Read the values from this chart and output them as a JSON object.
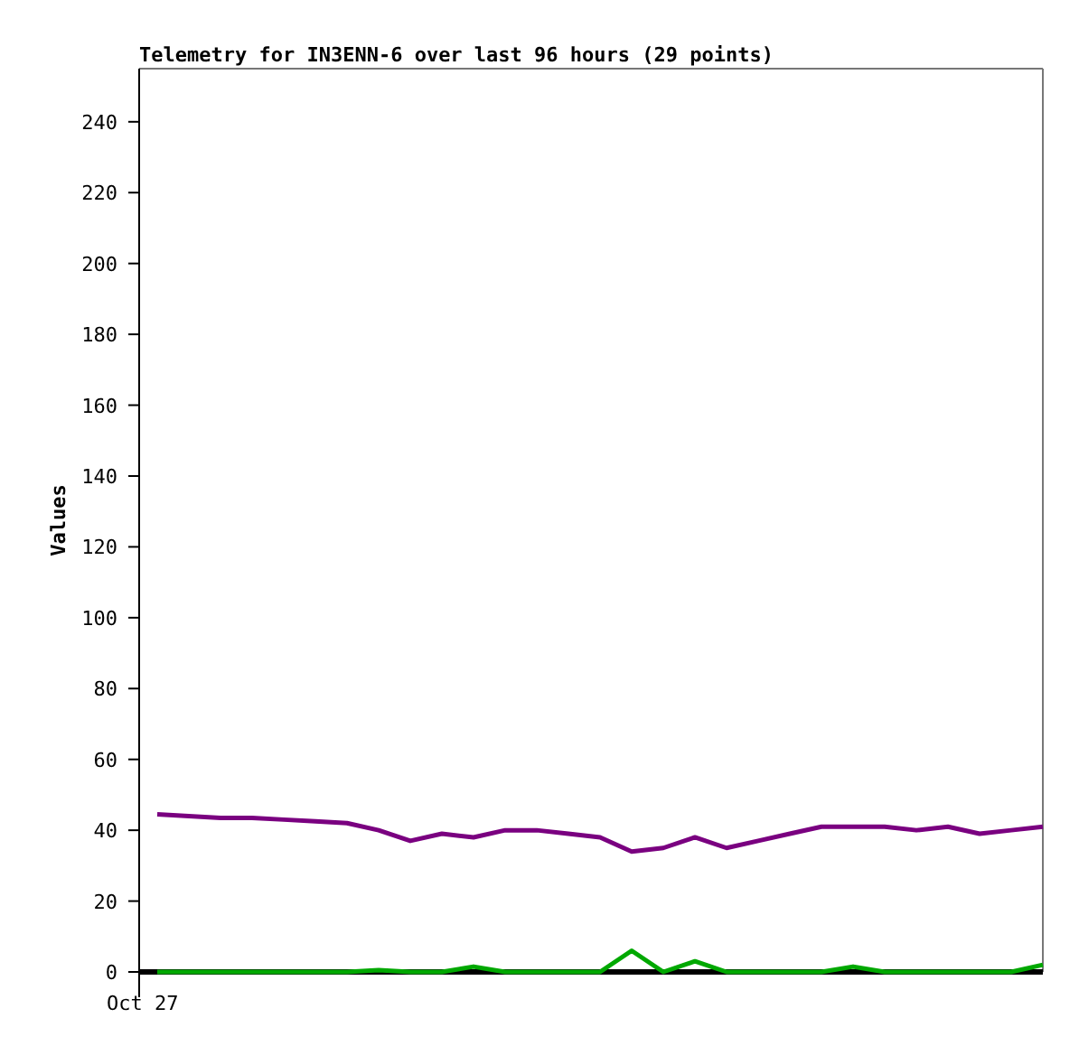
{
  "chart_data": {
    "type": "line",
    "title": "Telemetry for IN3ENN-6 over last 96 hours (29 points)",
    "ylabel": "Values",
    "categories": [
      "Oct 27",
      null,
      null,
      null,
      null,
      null,
      null,
      null,
      null,
      null,
      null,
      null,
      null,
      null,
      null,
      null,
      null,
      null,
      null,
      null,
      null,
      null,
      null,
      null,
      null,
      null,
      null,
      null,
      null
    ],
    "series": [
      {
        "color": "#7a0080",
        "values": [
          44.5,
          44,
          43.5,
          43.5,
          43,
          42.5,
          42,
          40,
          37,
          39,
          38,
          40,
          40,
          39,
          38,
          34,
          35,
          38,
          35,
          37,
          39,
          41,
          41,
          41,
          40,
          41,
          39,
          40,
          41
        ]
      },
      {
        "color": "#00a800",
        "values": [
          0,
          0,
          0,
          0,
          0,
          0,
          0,
          0.5,
          0,
          0,
          1.5,
          0,
          0,
          0,
          0,
          6,
          0,
          3,
          0,
          0,
          0,
          0,
          1.5,
          0,
          0,
          0,
          0,
          0,
          2
        ]
      }
    ],
    "ylim": [
      0,
      255
    ],
    "yticks": [
      0,
      20,
      40,
      60,
      80,
      100,
      120,
      140,
      160,
      180,
      200,
      220,
      240
    ]
  }
}
